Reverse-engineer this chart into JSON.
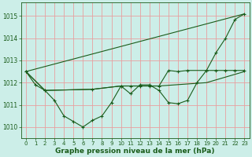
{
  "bg_color": "#cceee8",
  "grid_color": "#e8a0a0",
  "line_color": "#1a5c1a",
  "axis_color": "#1a5c1a",
  "xlabel": "Graphe pression niveau de la mer (hPa)",
  "xlabel_fontsize": 6.5,
  "ylim": [
    1009.5,
    1015.6
  ],
  "xlim": [
    -0.5,
    23.5
  ],
  "yticks": [
    1010,
    1011,
    1012,
    1013,
    1014,
    1015
  ],
  "xticks": [
    0,
    1,
    2,
    3,
    4,
    5,
    6,
    7,
    8,
    9,
    10,
    11,
    12,
    13,
    14,
    15,
    16,
    17,
    18,
    19,
    20,
    21,
    22,
    23
  ],
  "line1_x": [
    0,
    1,
    2,
    3,
    4,
    5,
    6,
    7,
    8,
    9,
    10,
    11,
    12,
    13,
    14,
    15,
    16,
    17,
    18,
    19,
    20,
    21,
    22,
    23
  ],
  "line1_y": [
    1012.5,
    1011.9,
    1011.65,
    1011.2,
    1010.5,
    1010.25,
    1010.0,
    1010.3,
    1010.5,
    1011.1,
    1011.85,
    1011.5,
    1011.9,
    1011.9,
    1011.65,
    1011.1,
    1011.05,
    1011.2,
    1012.0,
    1012.55,
    1013.35,
    1014.0,
    1014.85,
    1015.1
  ],
  "line2_x": [
    0,
    23
  ],
  "line2_y": [
    1012.5,
    1012.5
  ],
  "line3_x": [
    0,
    2,
    3,
    4,
    5,
    6,
    7,
    8,
    9,
    10,
    11,
    12,
    13,
    14,
    15,
    16,
    17,
    18,
    19,
    20,
    21,
    22,
    23
  ],
  "line3_y": [
    1012.5,
    1011.65,
    1011.65,
    1011.65,
    1011.65,
    1011.65,
    1011.65,
    1011.65,
    1011.65,
    1011.85,
    1011.85,
    1011.85,
    1011.85,
    1011.85,
    1012.55,
    1012.5,
    1012.55,
    1012.55,
    1012.55,
    1012.55,
    1012.55,
    1012.55,
    1012.55
  ],
  "line4_x": [
    0,
    2,
    7,
    10,
    14,
    19,
    20,
    21,
    22,
    23
  ],
  "line4_y": [
    1012.5,
    1011.65,
    1011.7,
    1011.85,
    1011.85,
    1012.55,
    1013.35,
    1014.0,
    1014.85,
    1015.1
  ]
}
